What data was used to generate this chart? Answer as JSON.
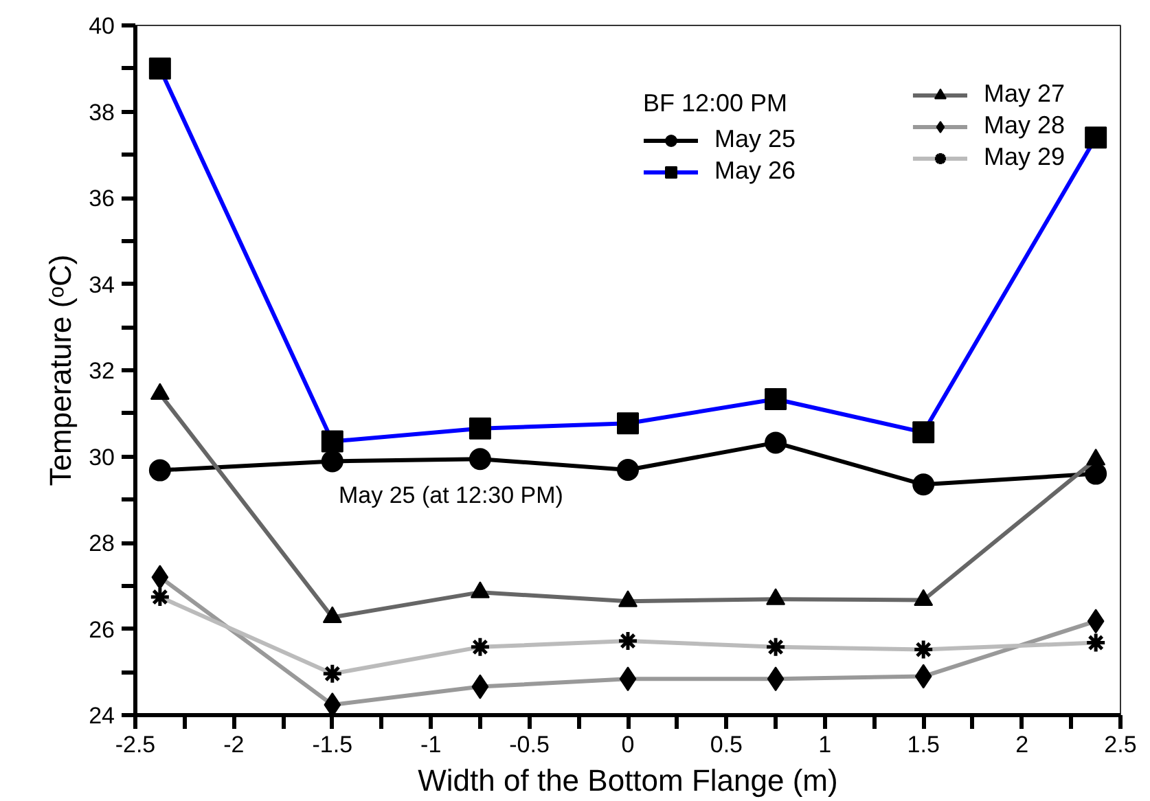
{
  "chart_data": {
    "type": "line",
    "xlabel": "Width of the Bottom Flange (m)",
    "ylabel": "Temperature (ᵒC)",
    "legend_title": "BF 12:00 PM",
    "x": [
      -2.375,
      -1.5,
      -0.75,
      0,
      0.75,
      1.5,
      2.375
    ],
    "series": [
      {
        "name": "May 25",
        "color": "#000000",
        "marker": "circle",
        "values": [
          29.68,
          29.89,
          29.94,
          29.69,
          30.32,
          29.35,
          29.6
        ]
      },
      {
        "name": "May 26",
        "color": "#0000ff",
        "marker": "square",
        "values": [
          39.0,
          30.35,
          30.65,
          30.77,
          31.33,
          30.56,
          37.4
        ]
      },
      {
        "name": "May 27",
        "color": "#666666",
        "marker": "triangle",
        "values": [
          31.45,
          26.27,
          26.85,
          26.64,
          26.69,
          26.67,
          29.93
        ]
      },
      {
        "name": "May 28",
        "color": "#999999",
        "marker": "diamond",
        "values": [
          27.2,
          24.24,
          24.66,
          24.84,
          24.84,
          24.9,
          26.18
        ]
      },
      {
        "name": "May 29",
        "color": "#bbbbbb",
        "marker": "cross",
        "values": [
          26.74,
          24.96,
          25.58,
          25.72,
          25.58,
          25.52,
          25.68
        ]
      }
    ],
    "annotations": [
      "May 25 (at 12:30 PM)"
    ],
    "xlim": [
      -2.5,
      2.5
    ],
    "xticks": [
      -2.5,
      {
        "value": -2.25,
        "label": null
      },
      -2,
      {
        "value": -1.75,
        "label": null
      },
      -1.5,
      {
        "value": -1.25,
        "label": null
      },
      -1,
      {
        "value": -0.75,
        "label": null
      },
      -0.5,
      {
        "value": -0.25,
        "label": null
      },
      0,
      {
        "value": 0.25,
        "label": null
      },
      0.5,
      {
        "value": 0.75,
        "label": null
      },
      1,
      {
        "value": 1.25,
        "label": null
      },
      1.5,
      {
        "value": 1.75,
        "label": null
      },
      2,
      {
        "value": 2.25,
        "label": null
      },
      2.5
    ],
    "ylim": [
      24,
      40
    ],
    "yticks": [
      24,
      {
        "value": 25,
        "label": null
      },
      26,
      {
        "value": 27,
        "label": null
      },
      28,
      {
        "value": 29,
        "label": null
      },
      30,
      {
        "value": 31,
        "label": null
      },
      32,
      {
        "value": 33,
        "label": null
      },
      34,
      {
        "value": 35,
        "label": null
      },
      36,
      {
        "value": 37,
        "label": null
      },
      38,
      {
        "value": 39,
        "label": null
      },
      40
    ],
    "grid": false,
    "legend": "top right",
    "line_style": "solid"
  }
}
